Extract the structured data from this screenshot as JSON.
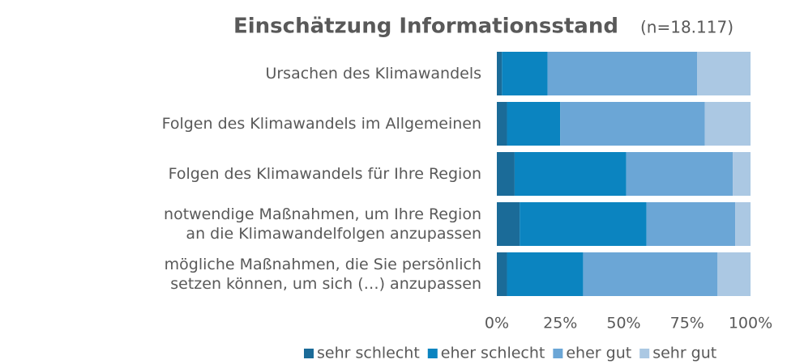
{
  "chart_data": {
    "type": "stacked_barh",
    "title": "Einschätzung Informationsstand",
    "subtitle": "(n=18.117)",
    "categories": [
      "Ursachen des Klimawandels",
      "Folgen des Klimawandels im Allgemeinen",
      "Folgen des Klimawandels für Ihre Region",
      "notwendige Maßnahmen, um Ihre Region\nan die Klimawandelfolgen anzupassen",
      "mögliche Maßnahmen, die Sie persönlich\nsetzen können, um sich (…) anzupassen"
    ],
    "series": [
      {
        "name": "sehr schlecht",
        "color": "#1b6b98",
        "values": [
          2,
          4,
          7,
          9,
          4
        ]
      },
      {
        "name": "eher schlecht",
        "color": "#0b84c0",
        "values": [
          18,
          21,
          44,
          50,
          30
        ]
      },
      {
        "name": "eher gut",
        "color": "#6ba6d6",
        "values": [
          59,
          57,
          42,
          35,
          53
        ]
      },
      {
        "name": "sehr gut",
        "color": "#abc8e3",
        "values": [
          21,
          18,
          7,
          6,
          13
        ]
      }
    ],
    "xlim": [
      0,
      100
    ],
    "xticks": [
      {
        "value": 0,
        "label": "0%"
      },
      {
        "value": 25,
        "label": "25%"
      },
      {
        "value": 50,
        "label": "50%"
      },
      {
        "value": 75,
        "label": "75%"
      },
      {
        "value": 100,
        "label": "100%"
      }
    ],
    "legend": "bottom"
  }
}
